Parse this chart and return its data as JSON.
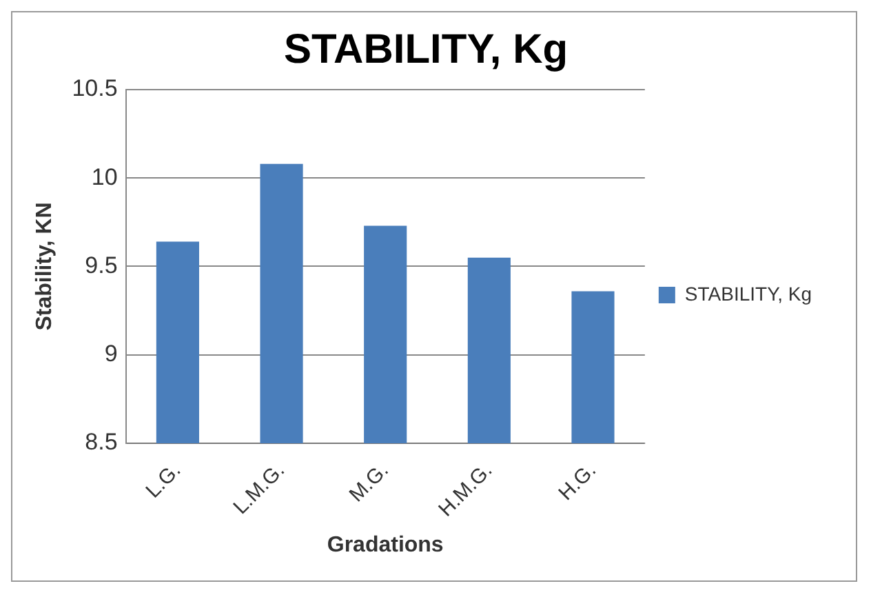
{
  "chart_data": {
    "type": "bar",
    "title": "STABILITY, Kg",
    "xlabel": "Gradations",
    "ylabel": "Stability, KN",
    "categories": [
      "L.G.",
      "L.M.G.",
      "M.G.",
      "H.M.G.",
      "H.G."
    ],
    "series": [
      {
        "name": "STABILITY, Kg",
        "color": "#4a7ebb",
        "values": [
          9.64,
          10.08,
          9.73,
          9.55,
          9.36
        ]
      }
    ],
    "ylim": [
      8.5,
      10.5
    ],
    "yticks": [
      8.5,
      9,
      9.5,
      10,
      10.5
    ],
    "grid": "y",
    "legend": "right"
  }
}
